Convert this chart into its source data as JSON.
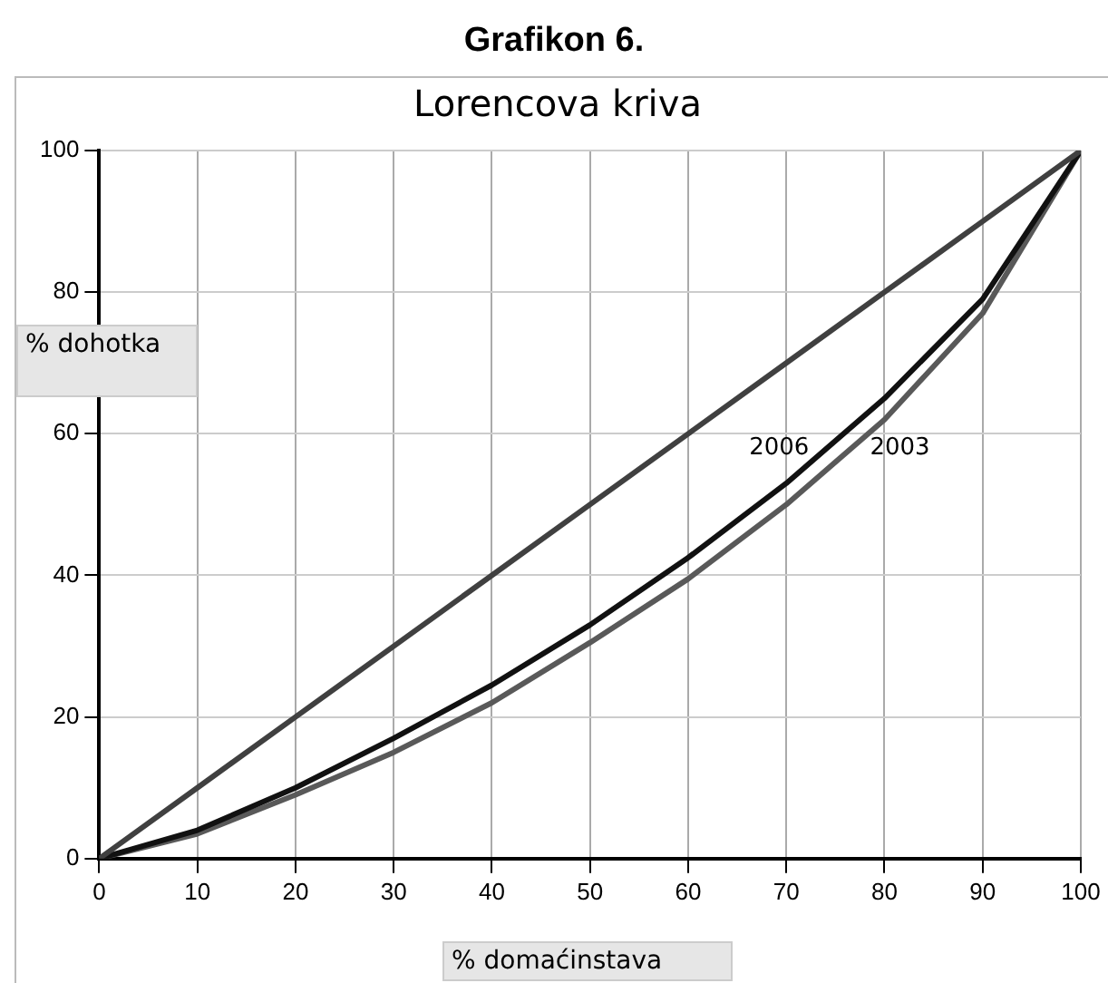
{
  "chart_data": {
    "type": "line",
    "title": "Grafikon 6.",
    "subtitle": "Lorencova kriva",
    "xlabel": "% domaćinstava",
    "ylabel": "% dohotka",
    "x": [
      0,
      10,
      20,
      30,
      40,
      50,
      60,
      70,
      80,
      90,
      100
    ],
    "series": [
      {
        "color": "#404040",
        "values": [
          0,
          10,
          20,
          30,
          40,
          50,
          60,
          70,
          80,
          90,
          100
        ]
      },
      {
        "name": "2006",
        "color": "#111111",
        "values": [
          0,
          4,
          10,
          17,
          24.5,
          33,
          42.5,
          53,
          65,
          79,
          100
        ]
      },
      {
        "name": "2003",
        "color": "#595959",
        "values": [
          0,
          3.5,
          9,
          15,
          22,
          30.5,
          39.5,
          50,
          62,
          77,
          100
        ]
      }
    ],
    "xlim": [
      0,
      100
    ],
    "xticks": [
      0,
      10,
      20,
      30,
      40,
      50,
      60,
      70,
      80,
      90,
      100
    ],
    "ylim": [
      0,
      100
    ],
    "yticks": [
      0,
      20,
      40,
      60,
      80,
      100
    ],
    "grid": true,
    "legend": false,
    "marker": "none",
    "line_style": "solid"
  }
}
